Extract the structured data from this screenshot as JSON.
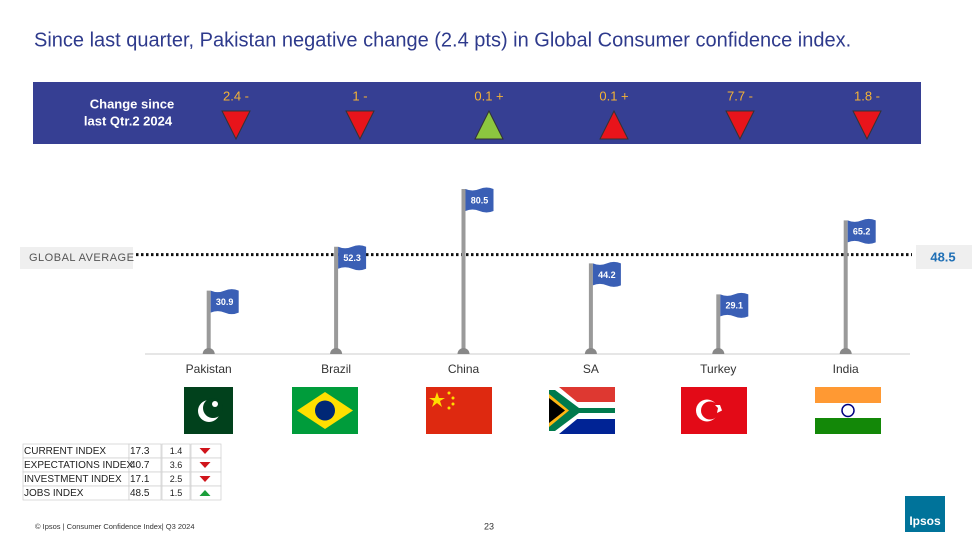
{
  "title": "Since last quarter, Pakistan negative change (2.4 pts) in Global Consumer confidence index.",
  "change_panel": {
    "label": [
      "Change since",
      "last Qtr.2 2024"
    ],
    "items": [
      {
        "label": "2.4 -",
        "direction": "down",
        "color": "#e8141b"
      },
      {
        "label": "1 -",
        "direction": "down",
        "color": "#e8141b"
      },
      {
        "label": "0.1 +",
        "direction": "up",
        "color": "#8cc63f"
      },
      {
        "label": "0.1 +",
        "direction": "up",
        "color": "#e8141b"
      },
      {
        "label": "7.7 -",
        "direction": "down",
        "color": "#e8141b"
      },
      {
        "label": "1.8 -",
        "direction": "down",
        "color": "#e8141b"
      }
    ]
  },
  "chart_data": {
    "type": "flag",
    "categories": [
      "Pakistan",
      "Brazil",
      "China",
      "SA",
      "Turkey",
      "India"
    ],
    "values": [
      30.9,
      52.3,
      80.5,
      44.2,
      29.1,
      65.2
    ],
    "color": "#3a5fb5",
    "reference": {
      "label": "GLOBAL AVERAGE",
      "value": 48.5
    }
  },
  "table": {
    "rows": [
      {
        "cells": [
          "CURRENT INDEX",
          "17.3",
          "1.4"
        ],
        "direction": "down"
      },
      {
        "cells": [
          "EXPECTATIONS INDEX",
          "40.7",
          "3.6"
        ],
        "direction": "down"
      },
      {
        "cells": [
          "INVESTMENT INDEX",
          "17.1",
          "2.5"
        ],
        "direction": "down"
      },
      {
        "cells": [
          "JOBS INDEX",
          "48.5",
          "1.5"
        ],
        "direction": "up"
      }
    ]
  },
  "footer": {
    "source": "© Ipsos | Consumer Confidence Index| Q3 2024",
    "page": "23",
    "logo": "Ipsos"
  }
}
